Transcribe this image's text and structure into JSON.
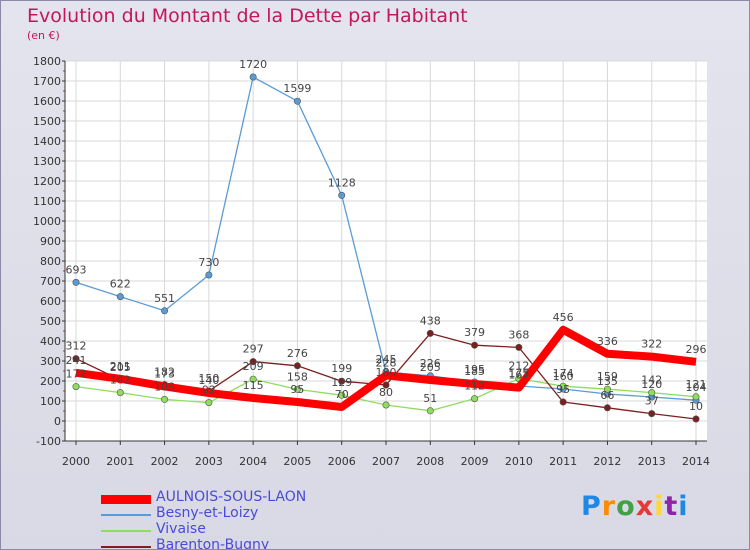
{
  "title": "Evolution du Montant de la Dette par Habitant",
  "subtitle": "(en €)",
  "logo": {
    "text": "Proxiti",
    "colors": [
      "#1e88e5",
      "#fb8c00",
      "#43a047",
      "#e53935",
      "#fdd835",
      "#8e24aa",
      "#1e88e5"
    ]
  },
  "chart_data": {
    "type": "line",
    "x": [
      "2000",
      "2001",
      "2002",
      "2003",
      "2004",
      "2005",
      "2006",
      "2007",
      "2008",
      "2009",
      "2010",
      "2011",
      "2012",
      "2013",
      "2014"
    ],
    "ylim": [
      -100,
      1800
    ],
    "yticks": [
      "-100",
      "0",
      "100",
      "200",
      "300",
      "400",
      "500",
      "600",
      "700",
      "800",
      "900",
      "1000",
      "1100",
      "1200",
      "1300",
      "1400",
      "1500",
      "1600",
      "1700",
      "1800"
    ],
    "grid": true,
    "legend_position": "bottom-left",
    "series": [
      {
        "name": "AULNOIS-SOUS-LAON",
        "color": "#ff0000",
        "width": 8,
        "values": [
          241,
          211,
          173,
          140,
          115,
          95,
          70,
          228,
          205,
          185,
          167,
          456,
          336,
          322,
          296
        ],
        "labels": [
          "241",
          "211",
          "173",
          "140",
          "115",
          "95",
          "70",
          "228",
          "205",
          "185",
          "167",
          "456",
          "336",
          "322",
          "296"
        ]
      },
      {
        "name": "Besny-et-Loizy",
        "color": "#5b9bd5",
        "width": 1.3,
        "values": [
          693,
          622,
          551,
          730,
          1720,
          1599,
          1128,
          245,
          226,
          195,
          175,
          160,
          135,
          120,
          104
        ],
        "labels": [
          "693",
          "622",
          "551",
          "730",
          "1720",
          "1599",
          "1128",
          "245",
          "226",
          "195",
          "175",
          "160",
          "135",
          "120",
          "104"
        ]
      },
      {
        "name": "Vivaise",
        "color": "#8edd5e",
        "width": 1.3,
        "values": [
          172,
          142,
          108,
          92,
          209,
          158,
          129,
          80,
          51,
          112,
          212,
          174,
          159,
          142,
          121
        ],
        "labels": [
          "172",
          "142",
          "108",
          "92",
          "209",
          "158",
          "129",
          "80",
          "51",
          "112",
          "212",
          "174",
          "159",
          "142",
          "121"
        ]
      },
      {
        "name": "Barenton-Bugny",
        "color": "#7b2020",
        "width": 1.3,
        "values": [
          312,
          205,
          182,
          150,
          297,
          276,
          199,
          180,
          438,
          379,
          368,
          95,
          66,
          37,
          10
        ],
        "labels": [
          "312",
          "205",
          "182",
          "150",
          "297",
          "276",
          "199",
          "180",
          "438",
          "379",
          "368",
          "95",
          "66",
          "37",
          "10"
        ]
      }
    ]
  }
}
